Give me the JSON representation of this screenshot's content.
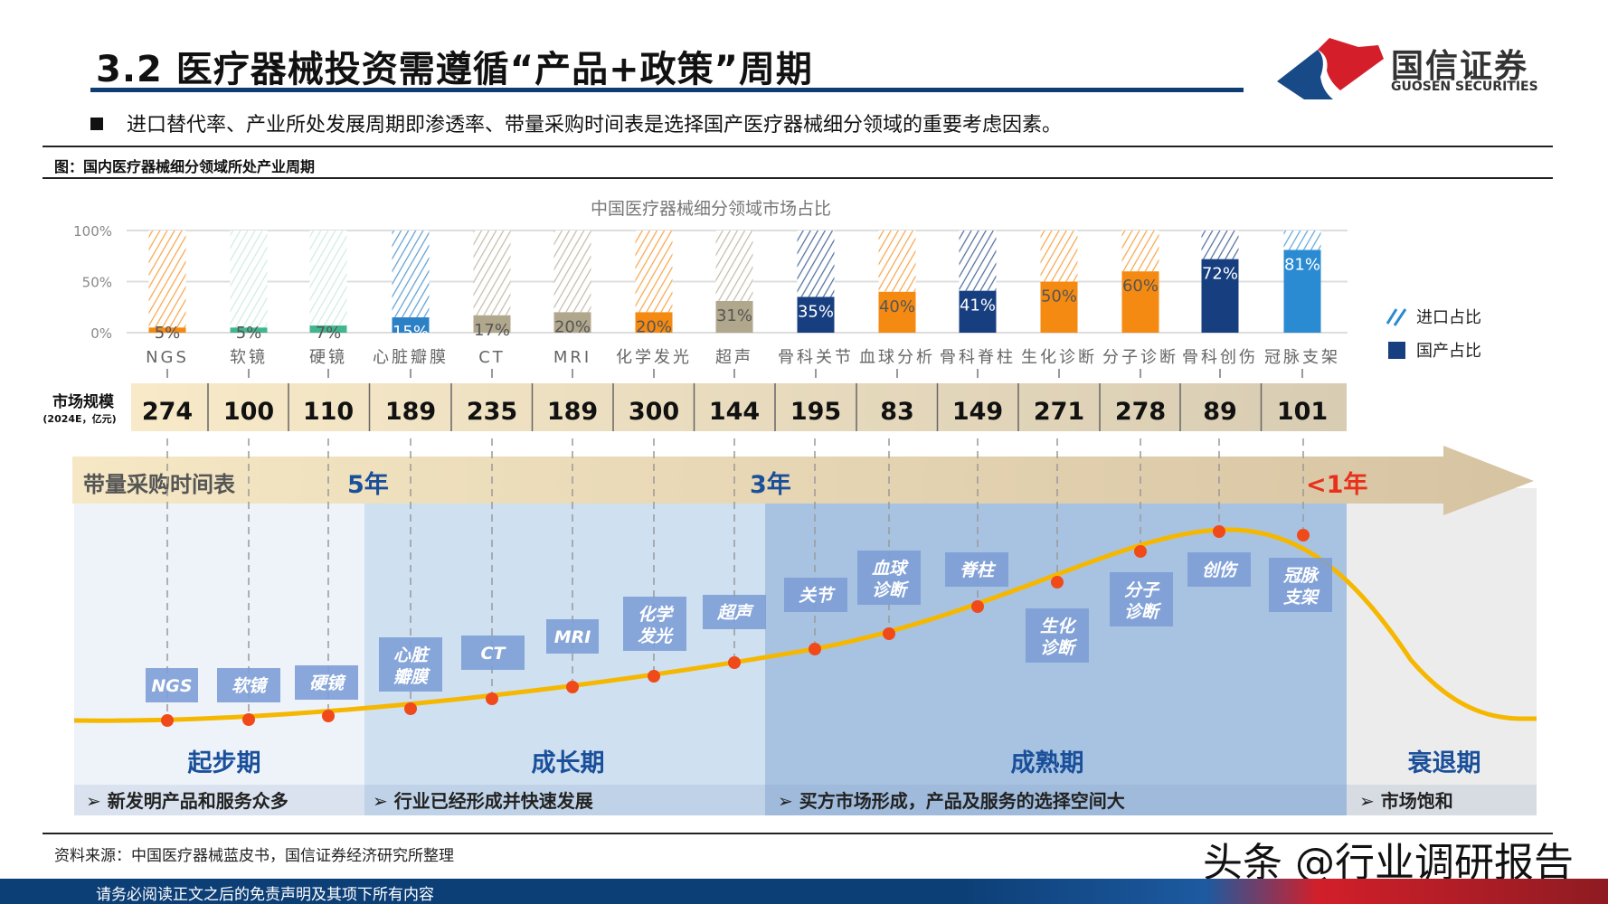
{
  "header": {
    "title": "3.2 医疗器械投资需遵循“产品+政策”周期",
    "bullet": "进口替代率、产业所处发展周期即渗透率、带量采购时间表是选择国产医疗器械细分领域的重要考虑因素。",
    "logo_cn": "国信证券",
    "logo_en": "GUOSEN SECURITIES"
  },
  "figure_caption": "图：国内医疗器械细分领域所处产业周期",
  "chart_data": {
    "type": "bar",
    "stacked": true,
    "title": "中国医疗器械细分领域市场占比",
    "categories": [
      "NGS",
      "软镜",
      "硬镜",
      "心脏瓣膜",
      "CT",
      "MRI",
      "化学发光",
      "超声",
      "骨科关节",
      "血球分析",
      "骨科脊柱",
      "生化诊断",
      "分子诊断",
      "骨科创伤",
      "冠脉支架"
    ],
    "series": [
      {
        "name": "国产占比",
        "values": [
          5,
          5,
          7,
          15,
          17,
          20,
          20,
          31,
          35,
          40,
          41,
          50,
          60,
          72,
          81
        ]
      },
      {
        "name": "进口占比",
        "values": [
          95,
          95,
          93,
          85,
          83,
          80,
          80,
          69,
          65,
          60,
          59,
          50,
          40,
          28,
          19
        ]
      }
    ],
    "value_labels": [
      "5%",
      "5%",
      "7%",
      "15%",
      "17%",
      "20%",
      "20%",
      "31%",
      "35%",
      "40%",
      "41%",
      "50%",
      "60%",
      "72%",
      "81%"
    ],
    "bar_colors": [
      "#f58a12",
      "#3fb68f",
      "#3fb68f",
      "#2b80c6",
      "#b1a78d",
      "#b1a78d",
      "#f58a12",
      "#b1a78d",
      "#173f80",
      "#f58a12",
      "#173f80",
      "#f58a12",
      "#f58a12",
      "#173f80",
      "#2b8bd2"
    ],
    "ylim": [
      0,
      100
    ],
    "yticks": [
      "0%",
      "50%",
      "100%"
    ],
    "grid": true,
    "legend_position": "right",
    "legend": [
      "进口占比",
      "国产占比"
    ]
  },
  "market_size": {
    "label": "市场规模",
    "sublabel": "(2024E，亿元)",
    "values": [
      "274",
      "100",
      "110",
      "189",
      "235",
      "189",
      "300",
      "144",
      "195",
      "83",
      "149",
      "271",
      "278",
      "89",
      "101"
    ]
  },
  "procurement": {
    "label": "带量采购时间表",
    "marks": [
      "5年",
      "3年",
      "<1年"
    ],
    "accent_red": "#e8301c",
    "accent_blue": "#1a4f9a"
  },
  "curve_labels": [
    "NGS",
    "软镜",
    "硬镜",
    "心脏瓣膜",
    "CT",
    "MRI",
    "化学发光",
    "超声",
    "关节",
    "血球诊断",
    "脊柱",
    "生化诊断",
    "分子诊断",
    "创伤",
    "冠脉支架"
  ],
  "phases": [
    {
      "name": "起步期",
      "desc": "新发明产品和服务众多"
    },
    {
      "name": "成长期",
      "desc": "行业已经形成并快速发展"
    },
    {
      "name": "成熟期",
      "desc": "买方市场形成，产品及服务的选择空间大"
    },
    {
      "name": "衰退期",
      "desc": "市场饱和"
    }
  ],
  "source": "资料来源：中国医疗器械蓝皮书，国信证券经济研究所整理",
  "footer": "请务必阅读正文之后的免责声明及其项下所有内容",
  "watermark": "头条 @行业调研报告"
}
